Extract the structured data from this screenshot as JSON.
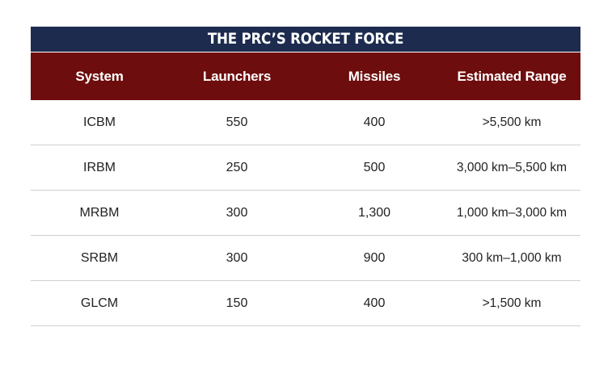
{
  "table": {
    "title": "THE PRC’S ROCKET FORCE",
    "columns": [
      "System",
      "Launchers",
      "Missiles",
      "Estimated Range"
    ],
    "rows": [
      [
        "ICBM",
        "550",
        "400",
        ">5,500 km"
      ],
      [
        "IRBM",
        "250",
        "500",
        "3,000 km–5,500 km"
      ],
      [
        "MRBM",
        "300",
        "1,300",
        "1,000 km–3,000 km"
      ],
      [
        "SRBM",
        "300",
        "900",
        "300 km–1,000 km"
      ],
      [
        "GLCM",
        "150",
        "400",
        ">1,500 km"
      ]
    ]
  },
  "colors": {
    "title_bg": "#1d2b4f",
    "header_bg": "#6e0d0d",
    "row_divider": "#cfcfcf"
  }
}
